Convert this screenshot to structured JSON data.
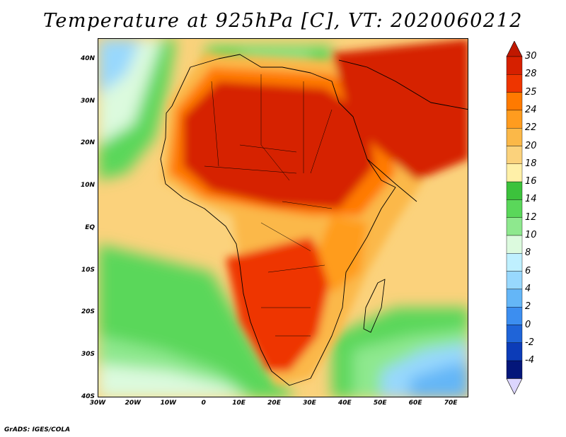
{
  "title": "Temperature at 925hPa [C], VT: 2020060212",
  "credit": "GrADS: IGES/COLA",
  "lat_labels": [
    {
      "text": "40N",
      "value": 40
    },
    {
      "text": "30N",
      "value": 30
    },
    {
      "text": "20N",
      "value": 20
    },
    {
      "text": "10N",
      "value": 10
    },
    {
      "text": "EQ",
      "value": 0
    },
    {
      "text": "10S",
      "value": -10
    },
    {
      "text": "20S",
      "value": -20
    },
    {
      "text": "30S",
      "value": -30
    },
    {
      "text": "40S",
      "value": -40
    }
  ],
  "lon_labels": [
    {
      "text": "30W",
      "value": -30
    },
    {
      "text": "20W",
      "value": -20
    },
    {
      "text": "10W",
      "value": -10
    },
    {
      "text": "0",
      "value": 0
    },
    {
      "text": "10E",
      "value": 10
    },
    {
      "text": "20E",
      "value": 20
    },
    {
      "text": "30E",
      "value": 30
    },
    {
      "text": "40E",
      "value": 40
    },
    {
      "text": "50E",
      "value": 50
    },
    {
      "text": "60E",
      "value": 60
    },
    {
      "text": "70E",
      "value": 70
    }
  ],
  "map_extent": {
    "lon_min": -30,
    "lon_max": 75,
    "lat_min": -40,
    "lat_max": 45
  },
  "colorbar": {
    "labels": [
      "30",
      "28",
      "25",
      "24",
      "22",
      "20",
      "18",
      "16",
      "14",
      "12",
      "10",
      "8",
      "6",
      "4",
      "2",
      "0",
      "-2",
      "-4"
    ],
    "colors": [
      "#d62000",
      "#ee3500",
      "#ff7a00",
      "#ff9c1f",
      "#fbb848",
      "#fbd27c",
      "#fff0a8",
      "#3cc23c",
      "#5ad75a",
      "#8ee88e",
      "#dcfade",
      "#bff0ff",
      "#98d8fd",
      "#64b6f7",
      "#3c8ef0",
      "#1f64d8",
      "#0c3cb8",
      "#03167a"
    ],
    "top_arrow_color": "#c01800",
    "bottom_arrow_color": "#dcd6ff"
  }
}
